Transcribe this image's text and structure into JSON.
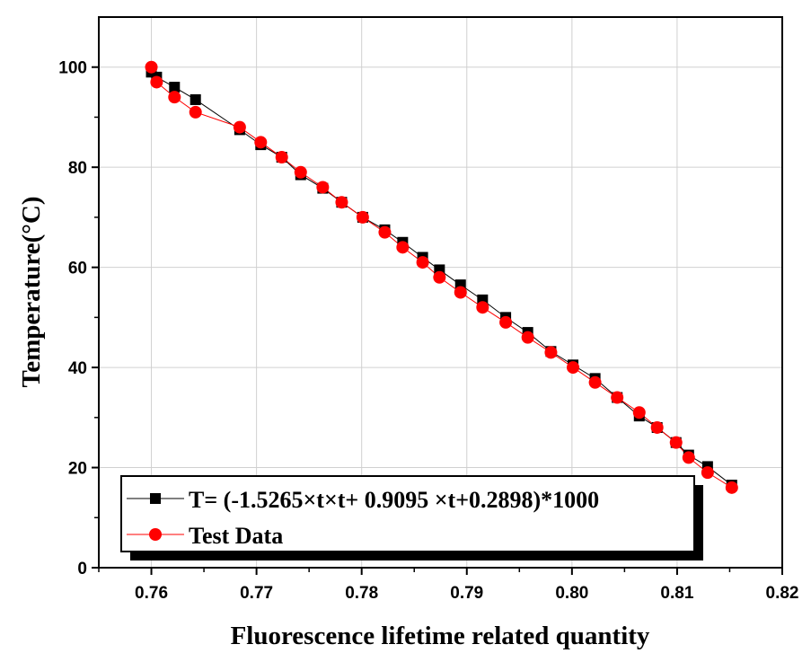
{
  "chart_data": {
    "type": "line",
    "xlabel": "Fluorescence lifetime related quantity",
    "ylabel": "Temperature(°C)",
    "xlim": [
      0.755,
      0.82
    ],
    "ylim": [
      0,
      110
    ],
    "xticks": [
      "0.76",
      "0.77",
      "0.78",
      "0.79",
      "0.80",
      "0.81",
      "0.82"
    ],
    "yticks": [
      "0",
      "20",
      "40",
      "60",
      "80",
      "100"
    ],
    "grid": true,
    "legend_position": "bottom-left",
    "series": [
      {
        "name": "T= (-1.5265×t×t+ 0.9095 ×t+0.2898)*1000",
        "color": "#000000",
        "marker": "square",
        "x": [
          0.76,
          0.7605,
          0.7622,
          0.7642,
          0.7684,
          0.7704,
          0.7724,
          0.7742,
          0.7763,
          0.7781,
          0.7801,
          0.7822,
          0.7839,
          0.7858,
          0.7874,
          0.7894,
          0.7915,
          0.7937,
          0.7958,
          0.798,
          0.8001,
          0.8022,
          0.8043,
          0.8064,
          0.8081,
          0.8099,
          0.8111,
          0.8129,
          0.8152
        ],
        "y": [
          99,
          98,
          96,
          93.5,
          87.5,
          84.5,
          82,
          78.5,
          75.8,
          73,
          70,
          67.5,
          65,
          62,
          59.5,
          56.5,
          53.5,
          50,
          47,
          43.2,
          40.5,
          37.8,
          34,
          30.3,
          28,
          25,
          22.5,
          20.2,
          16.5
        ]
      },
      {
        "name": "Test Data",
        "color": "#ff0000",
        "marker": "circle",
        "x": [
          0.76,
          0.7605,
          0.7622,
          0.7642,
          0.7684,
          0.7704,
          0.7724,
          0.7742,
          0.7763,
          0.7781,
          0.7801,
          0.7822,
          0.7839,
          0.7858,
          0.7874,
          0.7894,
          0.7915,
          0.7937,
          0.7958,
          0.798,
          0.8001,
          0.8022,
          0.8043,
          0.8064,
          0.8081,
          0.8099,
          0.8111,
          0.8129,
          0.8152
        ],
        "y": [
          100,
          97,
          94,
          91,
          88,
          85,
          82,
          79,
          76,
          73,
          70,
          67,
          64,
          61,
          58,
          55,
          52,
          49,
          46,
          43,
          40,
          37,
          34,
          31,
          28,
          25,
          22,
          19,
          16
        ]
      }
    ]
  }
}
